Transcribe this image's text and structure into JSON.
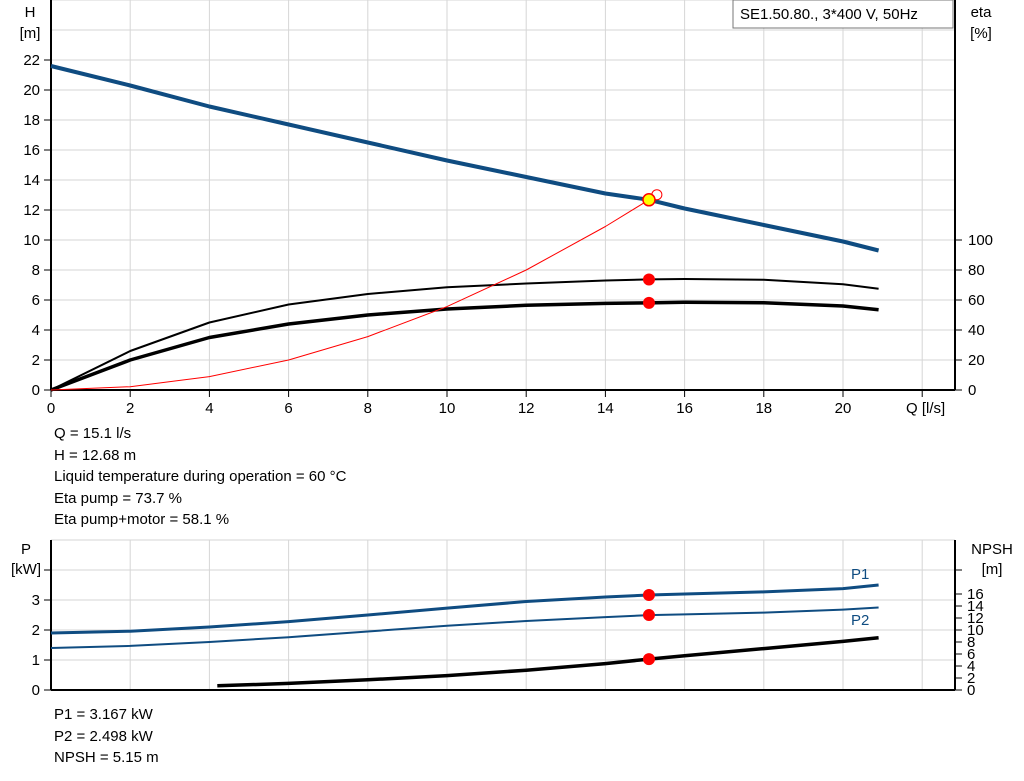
{
  "chart_data": [
    {
      "type": "line",
      "legend_box": "SE1.50.80., 3*400 V, 50Hz",
      "xlabel": "Q [l/s]",
      "ylabel": [
        "H",
        "[m]"
      ],
      "y2label": [
        "eta",
        "[%]"
      ],
      "xlim": [
        0,
        22
      ],
      "ylim": [
        0,
        22
      ],
      "y2lim": [
        0,
        100
      ],
      "grid": true,
      "xticks": [
        0,
        2,
        4,
        6,
        8,
        10,
        12,
        14,
        16,
        18,
        20
      ],
      "yticks": [
        0,
        2,
        4,
        6,
        8,
        10,
        12,
        14,
        16,
        18,
        20,
        22
      ],
      "y2ticks": [
        0,
        20,
        40,
        60,
        80,
        100
      ],
      "series": [
        {
          "key": "H",
          "axis": "y",
          "color": "#0f4c81",
          "x": [
            0,
            2,
            4,
            6,
            8,
            10,
            12,
            14,
            15.1,
            16,
            18,
            20,
            20.9
          ],
          "y": [
            21.6,
            20.3,
            18.9,
            17.7,
            16.5,
            15.3,
            14.2,
            13.1,
            12.68,
            12.1,
            11.0,
            9.9,
            9.3
          ]
        },
        {
          "key": "eta_pump",
          "axis": "y2",
          "color": "#000000",
          "x": [
            0,
            2,
            4,
            6,
            8,
            10,
            12,
            14,
            15.1,
            16,
            18,
            20,
            20.9
          ],
          "y": [
            0,
            26,
            45,
            57,
            64,
            68.5,
            71,
            73,
            73.7,
            74,
            73.5,
            70.5,
            67.5
          ]
        },
        {
          "key": "eta_pump_motor",
          "axis": "y2",
          "color": "#000000",
          "x": [
            0,
            2,
            4,
            6,
            8,
            10,
            12,
            14,
            15.1,
            16,
            18,
            20,
            20.9
          ],
          "y": [
            0,
            20,
            35,
            44,
            50,
            54,
            56.5,
            57.7,
            58.1,
            58.5,
            58.2,
            56,
            53.5
          ]
        },
        {
          "key": "system_curve",
          "axis": "y",
          "color": "#ff0000",
          "x": [
            0,
            2,
            4,
            6,
            8,
            10,
            12,
            14,
            15.1,
            15.3
          ],
          "y": [
            0,
            0.22,
            0.89,
            2.0,
            3.56,
            5.56,
            8.0,
            10.9,
            12.68,
            13.02
          ]
        }
      ],
      "operating_points": [
        {
          "series": "H",
          "x": 15.1,
          "y": 12.68
        },
        {
          "series": "eta_pump",
          "x": 15.1,
          "y": 73.7
        },
        {
          "series": "eta_pump_motor",
          "x": 15.1,
          "y": 58.1
        }
      ]
    },
    {
      "type": "line",
      "ylabel": [
        "P",
        "[kW]"
      ],
      "y2label": [
        "NPSH",
        "[m]"
      ],
      "xlim": [
        0,
        22
      ],
      "ylim": [
        0,
        5
      ],
      "y2lim": [
        0,
        25
      ],
      "grid": true,
      "yticks": [
        0,
        1,
        2,
        3
      ],
      "y2ticks": [
        0,
        2,
        4,
        6,
        8,
        10,
        12,
        14,
        16
      ],
      "series": [
        {
          "key": "P1",
          "name": "P1",
          "axis": "y",
          "color": "#0f4c81",
          "x": [
            0,
            2,
            4,
            6,
            8,
            10,
            12,
            14,
            15.1,
            16,
            18,
            20,
            20.9
          ],
          "y": [
            1.9,
            1.96,
            2.1,
            2.28,
            2.5,
            2.73,
            2.95,
            3.1,
            3.167,
            3.2,
            3.27,
            3.38,
            3.5
          ]
        },
        {
          "key": "P2",
          "name": "P2",
          "axis": "y",
          "color": "#0f4c81",
          "x": [
            0,
            2,
            4,
            6,
            8,
            10,
            12,
            14,
            15.1,
            16,
            18,
            20,
            20.9
          ],
          "y": [
            1.4,
            1.47,
            1.6,
            1.76,
            1.95,
            2.14,
            2.3,
            2.43,
            2.498,
            2.52,
            2.58,
            2.68,
            2.75
          ]
        },
        {
          "key": "NPSH",
          "axis": "y2",
          "color": "#000000",
          "x": [
            4.2,
            6,
            8,
            10,
            12,
            14,
            15.1,
            16,
            18,
            20,
            20.9
          ],
          "y": [
            0.7,
            1.1,
            1.7,
            2.4,
            3.3,
            4.4,
            5.15,
            5.7,
            6.9,
            8.1,
            8.7
          ]
        }
      ],
      "operating_points": [
        {
          "series": "P1",
          "x": 15.1,
          "y": 3.167
        },
        {
          "series": "P2",
          "x": 15.1,
          "y": 2.498
        },
        {
          "series": "NPSH",
          "x": 15.1,
          "y": 5.15
        }
      ]
    }
  ],
  "info_top": [
    "Q = 15.1 l/s",
    "H = 12.68 m",
    "Liquid temperature during operation = 60 °C",
    "Eta pump = 73.7 %",
    "Eta pump+motor = 58.1 %"
  ],
  "info_bottom": [
    "P1 = 3.167 kW",
    "P2 = 2.498 kW",
    "NPSH = 5.15 m"
  ]
}
